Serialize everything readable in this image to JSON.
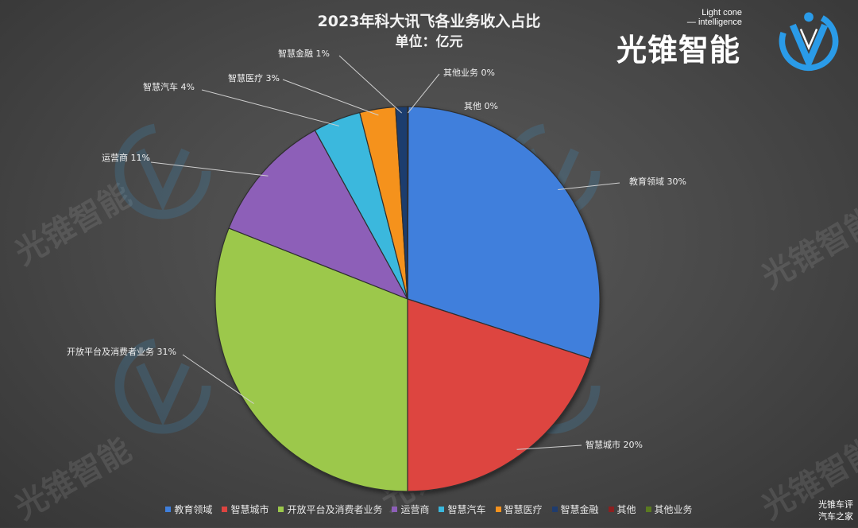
{
  "chart_data": {
    "type": "pie",
    "title": "2023年科大讯飞各业务收入占比",
    "subtitle": "单位：亿元",
    "legend_position": "bottom",
    "slices": [
      {
        "name": "教育领域",
        "label": "教育领域 30%",
        "percent": 30,
        "color": "#3f7fdc"
      },
      {
        "name": "智慧城市",
        "label": "智慧城市 20%",
        "percent": 20,
        "color": "#dd4440"
      },
      {
        "name": "开放平台及消费者业务",
        "label": "开放平台及消费者业务 31%",
        "percent": 31,
        "color": "#9cc84b"
      },
      {
        "name": "运营商",
        "label": "运营商 11%",
        "percent": 11,
        "color": "#8d5fb8"
      },
      {
        "name": "智慧汽车",
        "label": "智慧汽车 4%",
        "percent": 4,
        "color": "#3bb8dd"
      },
      {
        "name": "智慧医疗",
        "label": "智慧医疗 3%",
        "percent": 3,
        "color": "#f5921e"
      },
      {
        "name": "智慧金融",
        "label": "智慧金融 1%",
        "percent": 1,
        "color": "#1f3c6e"
      },
      {
        "name": "其他",
        "label": "其他 0%",
        "percent": 0,
        "color": "#8b1f1f"
      },
      {
        "name": "其他业务",
        "label": "其他业务 0%",
        "percent": 0,
        "color": "#5a7a20"
      }
    ]
  },
  "brand": {
    "name": "光锥智能",
    "english_line1": "Light cone",
    "english_line2": "— intelligence"
  },
  "watermark_text": "光锥智能",
  "source_mark": {
    "line1": "光锥车评",
    "line2": "汽车之家"
  }
}
